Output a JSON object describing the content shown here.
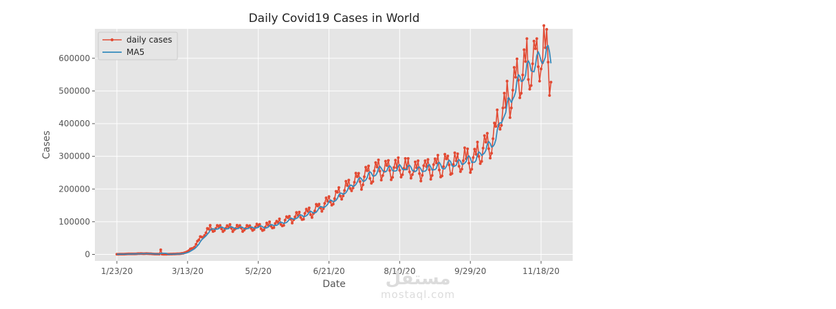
{
  "chart_data": {
    "type": "line",
    "title": "Daily Covid19 Cases in World",
    "xlabel": "Date",
    "ylabel": "Cases",
    "x_start_day": 0,
    "x_end_day": 307,
    "x_ticks": [
      {
        "day": 0,
        "label": "1/23/20"
      },
      {
        "day": 50,
        "label": "3/13/20"
      },
      {
        "day": 100,
        "label": "5/2/20"
      },
      {
        "day": 150,
        "label": "6/21/20"
      },
      {
        "day": 200,
        "label": "8/10/20"
      },
      {
        "day": 250,
        "label": "9/29/20"
      },
      {
        "day": 300,
        "label": "11/18/20"
      }
    ],
    "ylim": [
      -20000,
      690000
    ],
    "y_ticks": [
      0,
      100000,
      200000,
      300000,
      400000,
      500000,
      600000
    ],
    "grid": true,
    "legend_position": "top-left",
    "colors": {
      "daily_cases": "#E24A33",
      "ma5": "#348ABD",
      "plot_bg": "#E5E5E5",
      "grid": "#FFFFFF"
    },
    "series": [
      {
        "name": "daily cases",
        "trend_keypoints": [
          [
            0,
            500
          ],
          [
            10,
            1500
          ],
          [
            20,
            2500
          ],
          [
            28,
            1000
          ],
          [
            35,
            500
          ],
          [
            45,
            2000
          ],
          [
            50,
            8000
          ],
          [
            55,
            25000
          ],
          [
            60,
            55000
          ],
          [
            66,
            78000
          ],
          [
            75,
            80000
          ],
          [
            85,
            81000
          ],
          [
            95,
            80000
          ],
          [
            105,
            85000
          ],
          [
            115,
            95000
          ],
          [
            125,
            112000
          ],
          [
            135,
            125000
          ],
          [
            145,
            145000
          ],
          [
            155,
            175000
          ],
          [
            165,
            210000
          ],
          [
            175,
            235000
          ],
          [
            185,
            258000
          ],
          [
            195,
            262000
          ],
          [
            205,
            258000
          ],
          [
            215,
            262000
          ],
          [
            225,
            265000
          ],
          [
            235,
            275000
          ],
          [
            245,
            285000
          ],
          [
            255,
            300000
          ],
          [
            265,
            340000
          ],
          [
            272,
            420000
          ],
          [
            279,
            485000
          ],
          [
            285,
            540000
          ],
          [
            292,
            580000
          ],
          [
            298,
            600000
          ],
          [
            302,
            605000
          ],
          [
            307,
            585000
          ]
        ],
        "weekly_amplitude": 0.12
      },
      {
        "name": "MA5"
      }
    ]
  },
  "watermark": {
    "arabic": "مستقل",
    "latin": "mostaql.com"
  }
}
